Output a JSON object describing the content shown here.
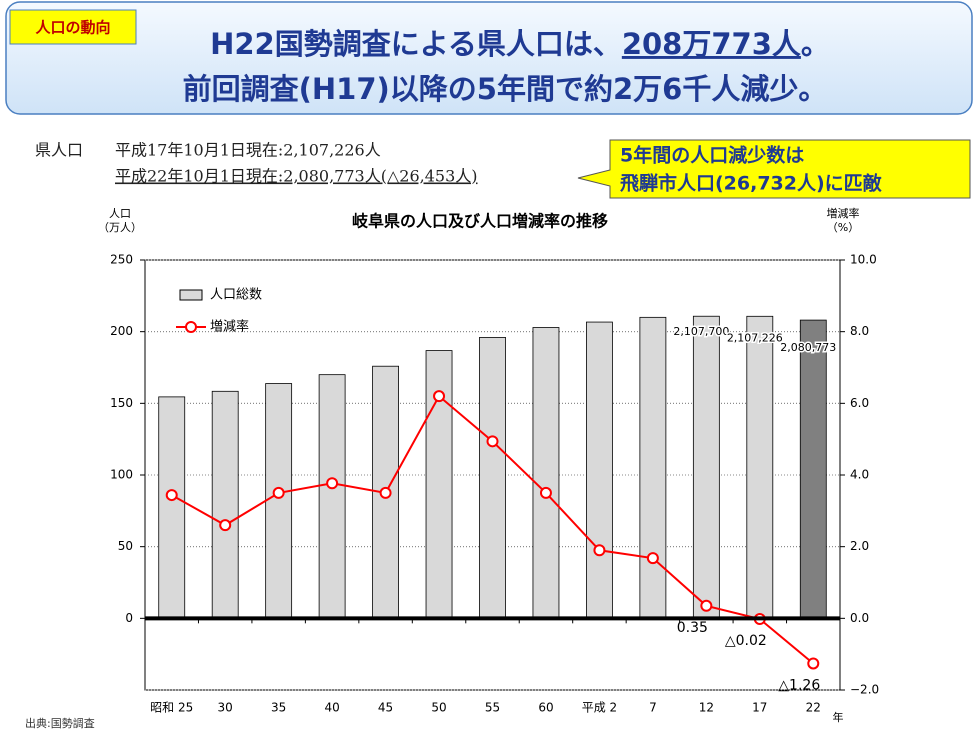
{
  "header": {
    "tag": "人口の動向",
    "title_line1": [
      "H22国勢調査による県人口は、",
      "208万773人",
      "。"
    ],
    "title_line2": "前回調査(H17)以降の5年間で約2万6千人減少。"
  },
  "info": {
    "label": "県人口",
    "lines": [
      "平成17年10月1日現在:2,107,226人",
      "平成22年10月1日現在:2,080,773人(△26,453人)"
    ]
  },
  "callout": [
    "5年間の人口減少数は",
    "飛騨市人口(26,732人)に匹敵"
  ],
  "source": "出典:国勢調査",
  "chart_data": {
    "type": "bar_line",
    "title": "岐阜県の人口及び人口増減率の推移",
    "y_label": [
      "人口",
      "（万人）"
    ],
    "y2_label": [
      "増減率",
      "（%）"
    ],
    "x_unit": "年",
    "categories": [
      "昭和 25",
      "30",
      "35",
      "40",
      "45",
      "50",
      "55",
      "60",
      "平成 2",
      "7",
      "12",
      "17",
      "22"
    ],
    "series": [
      {
        "name": "人口総数",
        "type": "bar",
        "color": "#d9d9d9",
        "colors": [
          "#d9d9d9",
          "#d9d9d9",
          "#d9d9d9",
          "#d9d9d9",
          "#d9d9d9",
          "#d9d9d9",
          "#d9d9d9",
          "#d9d9d9",
          "#d9d9d9",
          "#d9d9d9",
          "#d9d9d9",
          "#d9d9d9",
          "#808080"
        ],
        "values": [
          154.5,
          158.4,
          163.8,
          170.0,
          175.9,
          186.8,
          196.0,
          202.9,
          206.7,
          210.0,
          210.77,
          210.7226,
          208.0773
        ],
        "value_labels": [
          null,
          null,
          null,
          null,
          null,
          null,
          null,
          null,
          null,
          null,
          "2,107,700",
          "2,107,226",
          "2,080,773"
        ]
      },
      {
        "name": "増減率",
        "type": "line",
        "axis": "y2",
        "color": "#ff0000",
        "values": [
          3.44,
          2.6,
          3.5,
          3.77,
          3.5,
          6.2,
          4.94,
          3.5,
          1.9,
          1.68,
          0.35,
          -0.02,
          -1.26
        ],
        "value_labels": [
          null,
          null,
          null,
          null,
          null,
          null,
          null,
          null,
          null,
          null,
          "0.35",
          "△0.02",
          "△1.26"
        ]
      }
    ],
    "ylim": [
      -50,
      250
    ],
    "yticks": [
      0,
      50,
      100,
      150,
      200,
      250
    ],
    "y2lim": [
      -2,
      10
    ],
    "y2ticks": [
      {
        "value": 10,
        "label": "10.0"
      },
      {
        "value": 8,
        "label": "8.0"
      },
      {
        "value": 6,
        "label": "6.0"
      },
      {
        "value": 4,
        "label": "4.0"
      },
      {
        "value": 2,
        "label": "2.0"
      },
      {
        "value": 0,
        "label": "0.0"
      },
      {
        "value": -2,
        "label": "−2.0"
      }
    ],
    "grid": true,
    "legend": "upper left"
  }
}
